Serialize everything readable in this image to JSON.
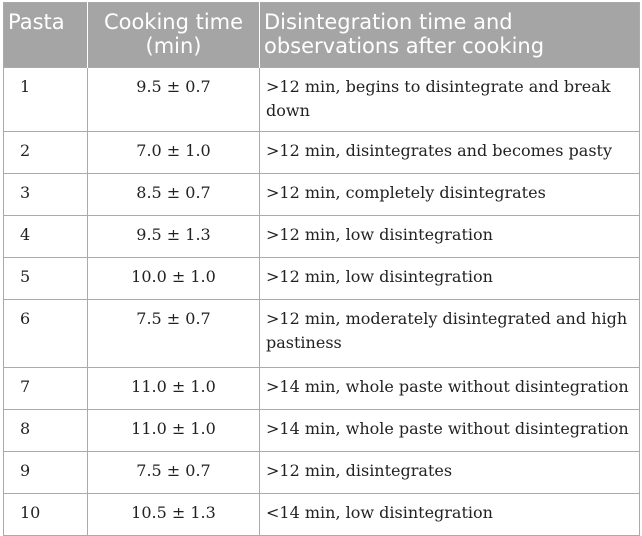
{
  "table": {
    "headers": {
      "pasta": "Pasta",
      "cooking_time": "Cooking time (min)",
      "disintegration": "Disintegration time and observations after cooking"
    },
    "rows": [
      {
        "pasta": "1",
        "time": "9.5 ± 0.7",
        "obs": ">12 min, begins to disintegrate and break down"
      },
      {
        "pasta": "2",
        "time": "7.0 ± 1.0",
        "obs": ">12 min, disintegrates and becomes pasty"
      },
      {
        "pasta": "3",
        "time": "8.5 ± 0.7",
        "obs": ">12 min, completely disintegrates"
      },
      {
        "pasta": "4",
        "time": "9.5 ± 1.3",
        "obs": ">12 min, low disintegration"
      },
      {
        "pasta": "5",
        "time": "10.0 ± 1.0",
        "obs": ">12 min, low disintegration"
      },
      {
        "pasta": "6",
        "time": "7.5 ± 0.7",
        "obs": ">12 min, moderately disintegrated and high pastiness"
      },
      {
        "pasta": "7",
        "time": "11.0 ± 1.0",
        "obs": ">14 min, whole paste without disintegration"
      },
      {
        "pasta": "8",
        "time": "11.0 ± 1.0",
        "obs": ">14 min, whole paste without disintegration"
      },
      {
        "pasta": "9",
        "time": "7.5 ± 0.7",
        "obs": ">12 min, disintegrates"
      },
      {
        "pasta": "10",
        "time": "10.5 ± 1.3",
        "obs": "<14 min, low disintegration"
      }
    ]
  },
  "colors": {
    "header_bg": "#a5a5a5",
    "header_text": "#ffffff",
    "border": "#aaaaaa"
  }
}
